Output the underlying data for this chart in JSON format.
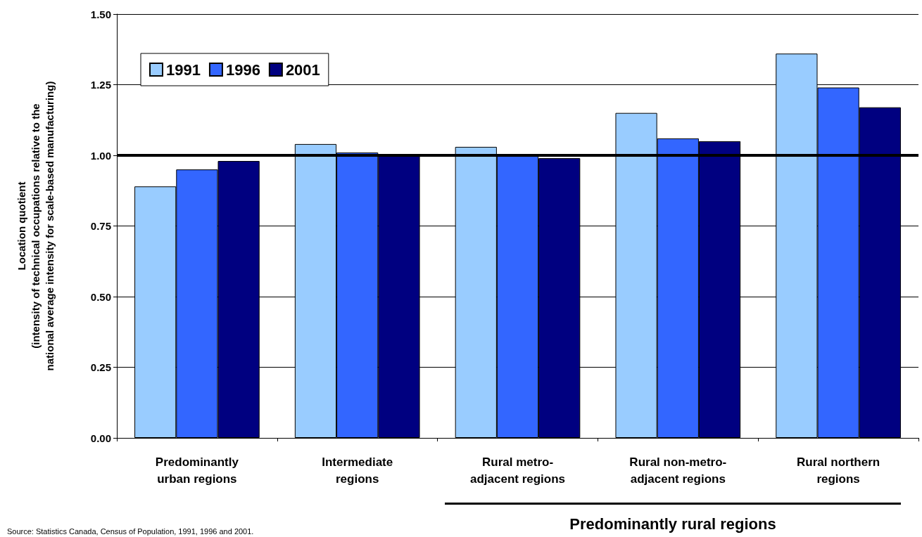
{
  "chart_data": {
    "type": "bar",
    "ylabel": "Location quotient\n(intensity of technical occupations relative to the\nnational average intensity for scale-based manufacturing)",
    "categories": [
      "Predominantly urban regions",
      "Intermediate regions",
      "Rural metro-adjacent regions",
      "Rural non-metro-adjacent regions",
      "Rural northern regions"
    ],
    "series": [
      {
        "name": "1991",
        "color": "#99ccff",
        "values": [
          0.89,
          1.04,
          1.03,
          1.15,
          1.36
        ]
      },
      {
        "name": "1996",
        "color": "#3366ff",
        "values": [
          0.95,
          1.01,
          1.0,
          1.06,
          1.24
        ]
      },
      {
        "name": "2001",
        "color": "#000080",
        "values": [
          0.98,
          1.0,
          0.99,
          1.05,
          1.17
        ]
      }
    ],
    "ylim": [
      0,
      1.5
    ],
    "yticks": [
      {
        "value": 0,
        "label": "0.00"
      },
      {
        "value": 0.25,
        "label": "0.25"
      },
      {
        "value": 0.5,
        "label": "0.50"
      },
      {
        "value": 0.75,
        "label": "0.75"
      },
      {
        "value": 1,
        "label": "1.00"
      },
      {
        "value": 1.25,
        "label": "1.25"
      },
      {
        "value": 1.5,
        "label": "1.50"
      }
    ],
    "ref_lines": [
      {
        "axis": "y",
        "value": 1,
        "color": "#000000"
      }
    ],
    "grid": "y",
    "legend": "top left",
    "annotations": [
      "Predominantly rural regions",
      "Source: Statistics Canada, Census of Population, 1991, 1996 and 2001."
    ]
  }
}
